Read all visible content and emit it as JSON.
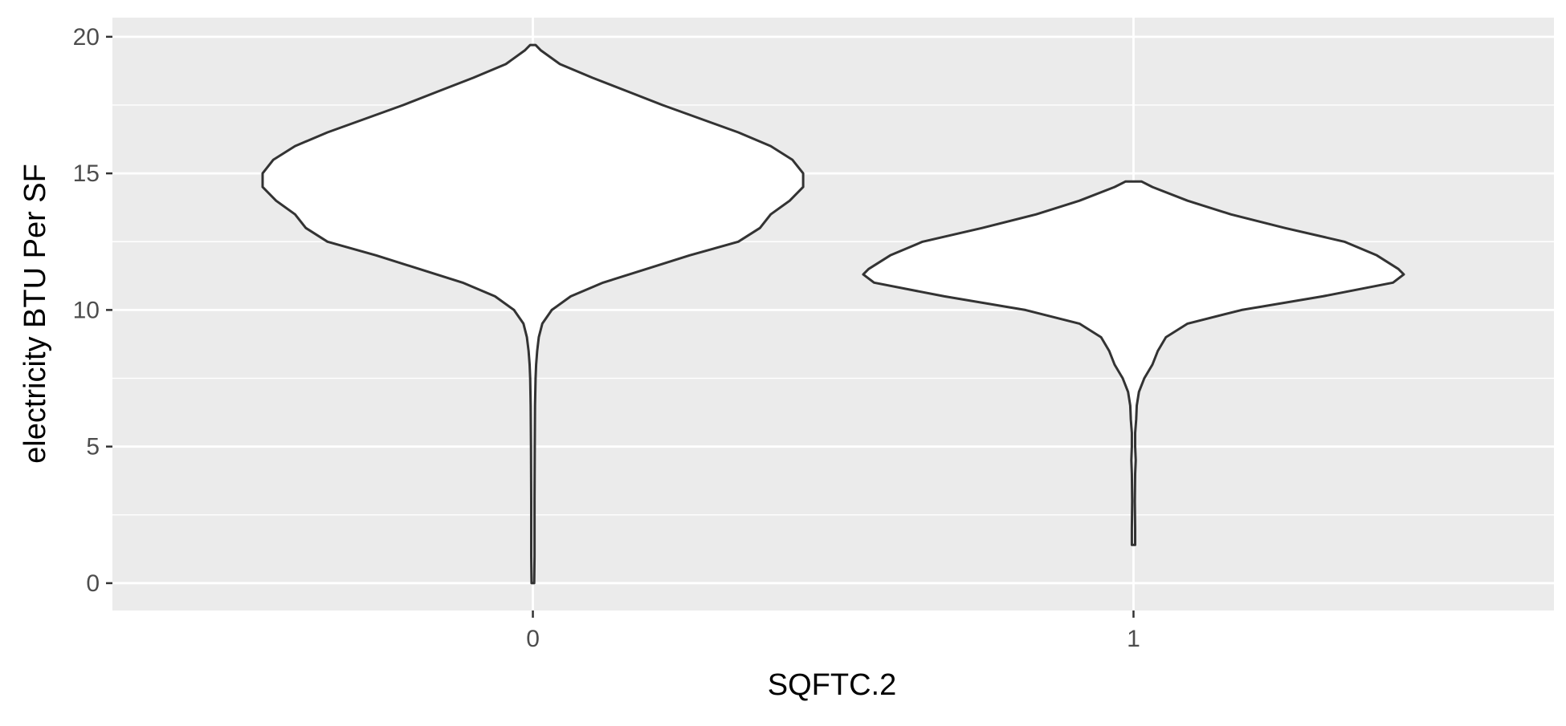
{
  "chart_data": {
    "type": "violin",
    "xlabel": "SQFTC.2",
    "ylabel": "electricity BTU Per SF",
    "ylim": [
      -1,
      20.7
    ],
    "y_ticks": [
      0,
      5,
      10,
      15,
      20
    ],
    "y_tick_labels": [
      "0",
      "5",
      "10",
      "15",
      "20"
    ],
    "categories": [
      "0",
      "1"
    ],
    "grid": true,
    "colors": {
      "panel": "#ebebeb",
      "grid": "#ffffff",
      "fill": "#ffffff",
      "outline": "#333333",
      "tick_text": "#4d4d4d",
      "tick_mark": "#333333"
    },
    "violins": [
      {
        "category": "0",
        "min": 0,
        "max": 19.7,
        "density": [
          [
            19.7,
            0.01
          ],
          [
            19.5,
            0.03
          ],
          [
            19.0,
            0.1
          ],
          [
            18.5,
            0.22
          ],
          [
            18.0,
            0.35
          ],
          [
            17.5,
            0.48
          ],
          [
            17.0,
            0.62
          ],
          [
            16.5,
            0.76
          ],
          [
            16.0,
            0.88
          ],
          [
            15.5,
            0.96
          ],
          [
            15.0,
            1.0
          ],
          [
            14.5,
            1.0
          ],
          [
            14.0,
            0.95
          ],
          [
            13.5,
            0.88
          ],
          [
            13.0,
            0.84
          ],
          [
            12.5,
            0.76
          ],
          [
            12.0,
            0.58
          ],
          [
            11.5,
            0.42
          ],
          [
            11.0,
            0.26
          ],
          [
            10.5,
            0.14
          ],
          [
            10.0,
            0.07
          ],
          [
            9.5,
            0.035
          ],
          [
            9.0,
            0.022
          ],
          [
            8.5,
            0.016
          ],
          [
            8.0,
            0.012
          ],
          [
            7.5,
            0.01
          ],
          [
            6.5,
            0.008
          ],
          [
            5.0,
            0.007
          ],
          [
            3.0,
            0.006
          ],
          [
            1.0,
            0.006
          ],
          [
            0.0,
            0.005
          ]
        ]
      },
      {
        "category": "1",
        "min": 1.4,
        "max": 14.7,
        "density": [
          [
            14.7,
            0.03
          ],
          [
            14.5,
            0.07
          ],
          [
            14.0,
            0.2
          ],
          [
            13.5,
            0.36
          ],
          [
            13.0,
            0.56
          ],
          [
            12.5,
            0.78
          ],
          [
            12.0,
            0.9
          ],
          [
            11.5,
            0.98
          ],
          [
            11.3,
            1.0
          ],
          [
            11.0,
            0.96
          ],
          [
            10.5,
            0.7
          ],
          [
            10.0,
            0.4
          ],
          [
            9.5,
            0.2
          ],
          [
            9.0,
            0.12
          ],
          [
            8.5,
            0.09
          ],
          [
            8.0,
            0.07
          ],
          [
            7.5,
            0.04
          ],
          [
            7.0,
            0.02
          ],
          [
            6.5,
            0.012
          ],
          [
            6.0,
            0.01
          ],
          [
            5.5,
            0.006
          ],
          [
            5.0,
            0.006
          ],
          [
            4.5,
            0.008
          ],
          [
            4.0,
            0.006
          ],
          [
            3.0,
            0.005
          ],
          [
            2.0,
            0.006
          ],
          [
            1.4,
            0.006
          ]
        ]
      }
    ]
  }
}
